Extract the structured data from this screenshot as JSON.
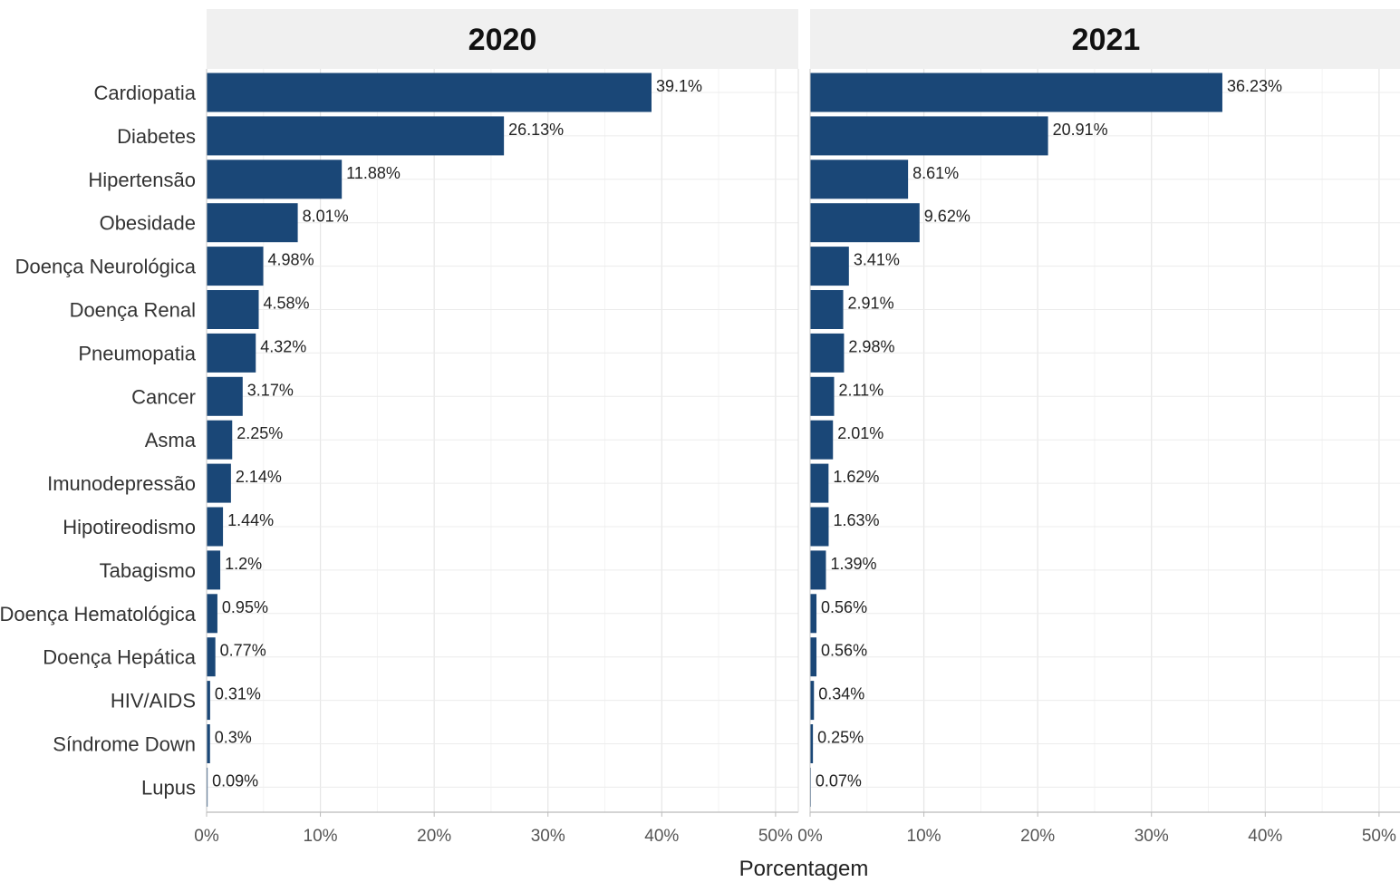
{
  "chart_data": {
    "type": "bar",
    "orientation": "horizontal",
    "categories": [
      "Cardiopatia",
      "Diabetes",
      "Hipertensão",
      "Obesidade",
      "Doença Neurológica",
      "Doença Renal",
      "Pneumopatia",
      "Cancer",
      "Asma",
      "Imunodepressão",
      "Hipotireodismo",
      "Tabagismo",
      "Doença Hematológica",
      "Doença Hepática",
      "HIV/AIDS",
      "Síndrome Down",
      "Lupus"
    ],
    "panels": [
      {
        "title": "2020",
        "values": [
          39.1,
          26.13,
          11.88,
          8.01,
          4.98,
          4.58,
          4.32,
          3.17,
          2.25,
          2.14,
          1.44,
          1.2,
          0.95,
          0.77,
          0.31,
          0.3,
          0.09
        ],
        "value_labels": [
          "39.1%",
          "26.13%",
          "11.88%",
          "8.01%",
          "4.98%",
          "4.58%",
          "4.32%",
          "3.17%",
          "2.25%",
          "2.14%",
          "1.44%",
          "1.2%",
          "0.95%",
          "0.77%",
          "0.31%",
          "0.3%",
          "0.09%"
        ]
      },
      {
        "title": "2021",
        "values": [
          36.23,
          20.91,
          8.61,
          9.62,
          3.41,
          2.91,
          2.98,
          2.11,
          2.01,
          1.62,
          1.63,
          1.39,
          0.56,
          0.56,
          0.34,
          0.25,
          0.07
        ],
        "value_labels": [
          "36.23%",
          "20.91%",
          "8.61%",
          "9.62%",
          "3.41%",
          "2.91%",
          "2.98%",
          "2.11%",
          "2.01%",
          "1.62%",
          "1.63%",
          "1.39%",
          "0.56%",
          "0.56%",
          "0.34%",
          "0.25%",
          "0.07%"
        ]
      }
    ],
    "xticks": [
      0,
      10,
      20,
      30,
      40,
      50
    ],
    "xtick_labels": [
      "0%",
      "10%",
      "20%",
      "30%",
      "40%",
      "50%"
    ],
    "xlim": [
      0,
      52
    ],
    "xlabel": "Porcentagem",
    "ylabel": "",
    "grid": true,
    "bar_color": "#1a4777",
    "strip_color": "#f0f0f0"
  }
}
